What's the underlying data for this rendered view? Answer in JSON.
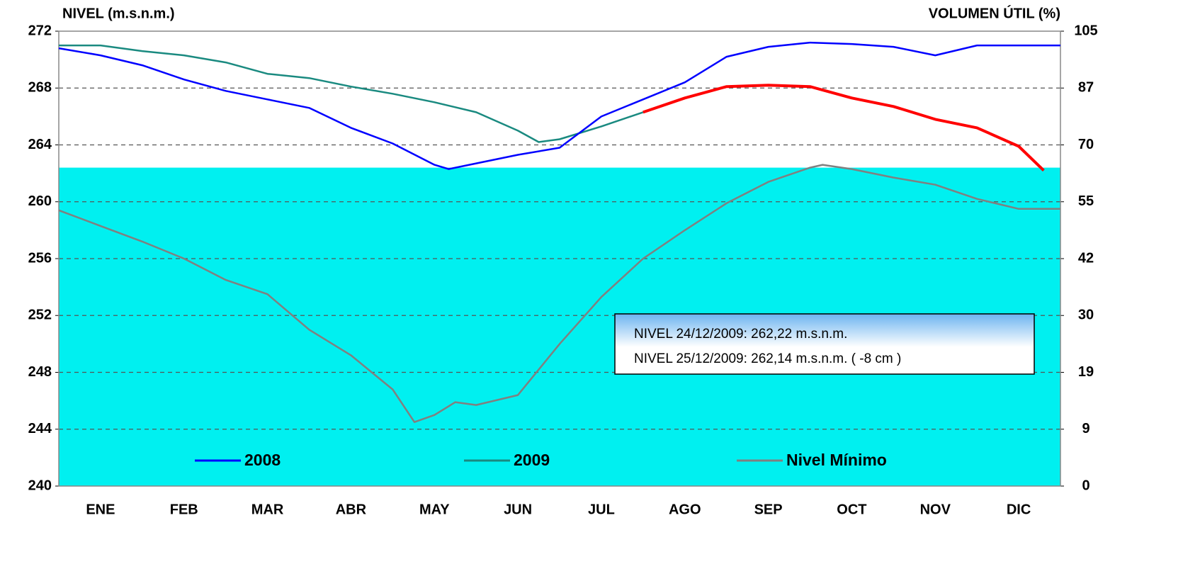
{
  "chart_data": {
    "type": "line",
    "y_axis_label": "NIVEL (m.s.n.m.)",
    "y2_axis_label": "VOLUMEN ÚTIL (%)",
    "categories": [
      "ENE",
      "FEB",
      "MAR",
      "ABR",
      "MAY",
      "JUN",
      "JUL",
      "AGO",
      "SEP",
      "OCT",
      "NOV",
      "DIC"
    ],
    "xlim": [
      0,
      12
    ],
    "ylim": [
      240,
      272
    ],
    "yticks": [
      240,
      244,
      248,
      252,
      256,
      260,
      264,
      268,
      272
    ],
    "y2lim": [
      0,
      105
    ],
    "y2ticks": [
      0,
      9,
      19,
      30,
      42,
      55,
      70,
      87,
      105
    ],
    "grid": true,
    "background_level": 262.4,
    "background_color": "#00f0f0",
    "series": [
      {
        "name": "2008",
        "color": "#0000ff",
        "x": [
          0,
          0.5,
          1,
          1.5,
          2,
          2.5,
          3,
          3.5,
          4,
          4.5,
          4.67,
          5,
          5.5,
          6,
          6.5,
          7,
          7.5,
          8,
          8.5,
          9,
          9.5,
          10,
          10.5,
          11,
          11.5,
          12
        ],
        "values": [
          270.8,
          270.3,
          269.6,
          268.6,
          267.8,
          267.2,
          266.6,
          265.2,
          264.1,
          262.6,
          262.3,
          262.7,
          263.3,
          263.8,
          266.0,
          267.2,
          268.4,
          270.2,
          270.9,
          271.2,
          271.1,
          270.9,
          270.3,
          271.0,
          271.0,
          271.0
        ]
      },
      {
        "name": "2009",
        "color": "#1a8a80",
        "highlight_color": "#ff0000",
        "highlight_from": 7,
        "x": [
          0,
          0.5,
          1,
          1.5,
          2,
          2.5,
          3,
          3.5,
          4,
          4.5,
          5,
          5.5,
          5.75,
          6,
          6.5,
          7,
          7.5,
          8,
          8.5,
          9,
          9.5,
          10,
          10.5,
          11,
          11.5,
          11.8
        ],
        "values": [
          271.0,
          271.0,
          270.6,
          270.3,
          269.8,
          269.0,
          268.7,
          268.1,
          267.6,
          267.0,
          266.3,
          265.0,
          264.2,
          264.4,
          265.3,
          266.3,
          267.3,
          268.1,
          268.2,
          268.1,
          267.3,
          266.7,
          265.8,
          265.2,
          263.9,
          262.2
        ]
      },
      {
        "name": "Nivel Mínimo",
        "color": "#808080",
        "x": [
          0,
          0.5,
          1,
          1.5,
          2,
          2.5,
          3,
          3.5,
          4,
          4.26,
          4.5,
          4.75,
          5,
          5.5,
          6,
          6.5,
          7,
          7.5,
          8,
          8.5,
          9,
          9.15,
          9.5,
          10,
          10.5,
          11,
          11.5,
          12
        ],
        "values": [
          259.4,
          258.3,
          257.2,
          256.0,
          254.5,
          253.5,
          251.0,
          249.2,
          246.8,
          244.5,
          245.0,
          245.9,
          245.7,
          246.4,
          250.0,
          253.3,
          256.0,
          258.0,
          259.9,
          261.4,
          262.4,
          262.6,
          262.3,
          261.7,
          261.2,
          260.2,
          259.5,
          259.5
        ]
      }
    ],
    "annotation": [
      "NIVEL 24/12/2009: 262,22 m.s.n.m.",
      "NIVEL 25/12/2009: 262,14 m.s.n.m.  ( -8 cm )"
    ]
  }
}
